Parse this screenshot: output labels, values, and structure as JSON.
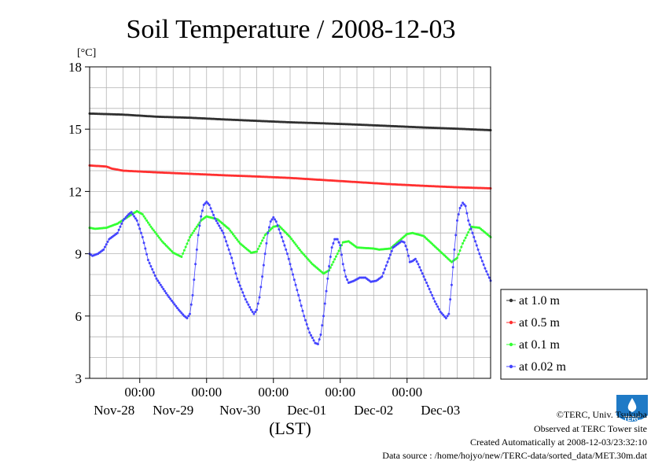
{
  "chart_data": {
    "type": "line",
    "title": "Soil Temperature / 2008-12-03",
    "yunit": "[°C]",
    "xlabel": "(LST)",
    "ylim": [
      3,
      18
    ],
    "yticks": [
      "18",
      "15",
      "12",
      "9",
      "6",
      "3"
    ],
    "xlim_hours": [
      0,
      144
    ],
    "x_time_labels": [
      "00:00",
      "00:00",
      "00:00",
      "00:00",
      "00:00"
    ],
    "x_date_labels": [
      "Nov-28",
      "Nov-29",
      "Nov-30",
      "Dec-01",
      "Dec-02",
      "Dec-03"
    ],
    "grid": true,
    "legend_position": "right",
    "series": [
      {
        "name": "at 1.0 m",
        "color": "#303030",
        "points": [
          [
            0,
            15.75
          ],
          [
            12,
            15.7
          ],
          [
            24,
            15.6
          ],
          [
            36,
            15.55
          ],
          [
            48,
            15.47
          ],
          [
            60,
            15.4
          ],
          [
            72,
            15.33
          ],
          [
            84,
            15.28
          ],
          [
            96,
            15.22
          ],
          [
            108,
            15.15
          ],
          [
            120,
            15.08
          ],
          [
            132,
            15.02
          ],
          [
            144,
            14.95
          ]
        ]
      },
      {
        "name": "at 0.5 m",
        "color": "#ff3030",
        "points": [
          [
            0,
            13.25
          ],
          [
            6,
            13.2
          ],
          [
            8,
            13.1
          ],
          [
            12,
            13.0
          ],
          [
            24,
            12.92
          ],
          [
            36,
            12.85
          ],
          [
            48,
            12.78
          ],
          [
            60,
            12.72
          ],
          [
            72,
            12.65
          ],
          [
            84,
            12.55
          ],
          [
            96,
            12.45
          ],
          [
            108,
            12.35
          ],
          [
            120,
            12.27
          ],
          [
            132,
            12.2
          ],
          [
            144,
            12.15
          ]
        ]
      },
      {
        "name": "at 0.1 m",
        "color": "#33ff33",
        "points": [
          [
            0,
            10.25
          ],
          [
            2,
            10.2
          ],
          [
            6,
            10.25
          ],
          [
            10,
            10.45
          ],
          [
            14,
            10.8
          ],
          [
            17,
            11.05
          ],
          [
            19,
            10.9
          ],
          [
            22,
            10.3
          ],
          [
            26,
            9.6
          ],
          [
            30,
            9.05
          ],
          [
            33,
            8.85
          ],
          [
            36,
            9.8
          ],
          [
            40,
            10.6
          ],
          [
            42,
            10.8
          ],
          [
            46,
            10.65
          ],
          [
            50,
            10.2
          ],
          [
            54,
            9.5
          ],
          [
            58,
            9.05
          ],
          [
            60,
            9.1
          ],
          [
            63,
            9.9
          ],
          [
            66,
            10.3
          ],
          [
            68,
            10.35
          ],
          [
            72,
            9.8
          ],
          [
            76,
            9.1
          ],
          [
            80,
            8.5
          ],
          [
            84,
            8.05
          ],
          [
            86,
            8.2
          ],
          [
            89,
            9.0
          ],
          [
            91,
            9.55
          ],
          [
            93,
            9.6
          ],
          [
            96,
            9.3
          ],
          [
            102,
            9.25
          ],
          [
            104,
            9.2
          ],
          [
            108,
            9.25
          ],
          [
            111,
            9.6
          ],
          [
            114,
            9.95
          ],
          [
            116,
            10.0
          ],
          [
            120,
            9.85
          ],
          [
            124,
            9.35
          ],
          [
            128,
            8.85
          ],
          [
            130,
            8.6
          ],
          [
            132,
            8.8
          ],
          [
            134,
            9.5
          ],
          [
            137,
            10.3
          ],
          [
            140,
            10.25
          ],
          [
            144,
            9.8
          ]
        ]
      },
      {
        "name": "at 0.02 m",
        "color": "#4444ff",
        "points": [
          [
            0,
            9.0
          ],
          [
            1,
            8.9
          ],
          [
            3,
            9.0
          ],
          [
            5,
            9.2
          ],
          [
            7,
            9.7
          ],
          [
            8,
            9.8
          ],
          [
            10,
            10.0
          ],
          [
            12,
            10.6
          ],
          [
            14,
            10.9
          ],
          [
            15,
            11.0
          ],
          [
            17,
            10.6
          ],
          [
            19,
            9.8
          ],
          [
            21,
            8.7
          ],
          [
            24,
            7.8
          ],
          [
            28,
            7.0
          ],
          [
            32,
            6.3
          ],
          [
            34,
            6.0
          ],
          [
            35,
            5.9
          ],
          [
            36,
            6.1
          ],
          [
            37,
            7.0
          ],
          [
            38,
            8.5
          ],
          [
            39,
            9.9
          ],
          [
            40,
            10.8
          ],
          [
            41,
            11.35
          ],
          [
            42,
            11.5
          ],
          [
            43,
            11.35
          ],
          [
            45,
            10.7
          ],
          [
            48,
            10.0
          ],
          [
            51,
            8.8
          ],
          [
            53,
            7.8
          ],
          [
            56,
            6.8
          ],
          [
            58,
            6.3
          ],
          [
            59,
            6.1
          ],
          [
            60,
            6.3
          ],
          [
            61,
            6.9
          ],
          [
            62,
            7.9
          ],
          [
            63,
            9.0
          ],
          [
            64,
            10.0
          ],
          [
            65,
            10.55
          ],
          [
            66,
            10.75
          ],
          [
            67,
            10.55
          ],
          [
            69,
            9.8
          ],
          [
            71,
            9.0
          ],
          [
            73,
            8.0
          ],
          [
            75,
            7.0
          ],
          [
            77,
            6.0
          ],
          [
            79,
            5.2
          ],
          [
            81,
            4.7
          ],
          [
            82,
            4.65
          ],
          [
            83,
            5.1
          ],
          [
            84,
            6.0
          ],
          [
            85,
            7.2
          ],
          [
            86,
            8.4
          ],
          [
            87,
            9.3
          ],
          [
            88,
            9.7
          ],
          [
            89,
            9.7
          ],
          [
            90,
            9.4
          ],
          [
            91,
            8.5
          ],
          [
            92,
            7.9
          ],
          [
            93,
            7.6
          ],
          [
            95,
            7.7
          ],
          [
            97,
            7.85
          ],
          [
            99,
            7.85
          ],
          [
            101,
            7.65
          ],
          [
            103,
            7.7
          ],
          [
            105,
            7.9
          ],
          [
            107,
            8.6
          ],
          [
            109,
            9.3
          ],
          [
            111,
            9.5
          ],
          [
            112,
            9.6
          ],
          [
            113,
            9.55
          ],
          [
            114,
            9.2
          ],
          [
            115,
            8.6
          ],
          [
            116,
            8.65
          ],
          [
            117,
            8.75
          ],
          [
            118,
            8.5
          ],
          [
            120,
            7.9
          ],
          [
            122,
            7.3
          ],
          [
            124,
            6.7
          ],
          [
            126,
            6.2
          ],
          [
            128,
            5.9
          ],
          [
            129,
            6.1
          ],
          [
            130,
            7.5
          ],
          [
            131,
            9.2
          ],
          [
            132,
            10.6
          ],
          [
            133,
            11.2
          ],
          [
            134,
            11.45
          ],
          [
            135,
            11.3
          ],
          [
            136,
            10.6
          ],
          [
            138,
            9.8
          ],
          [
            140,
            9.0
          ],
          [
            142,
            8.3
          ],
          [
            144,
            7.7
          ]
        ]
      }
    ]
  },
  "footer": {
    "copyright": "©TERC, Univ. Tsukuba",
    "site": "Observed at TERC Tower site",
    "created": "Created Automatically at 2008-12-03/23:32:10",
    "source": "Data source : /home/hojyo/new/TERC-data/sorted_data/MET.30m.dat"
  },
  "logo": {
    "text": "TERC",
    "color": "#1f7ac6"
  }
}
